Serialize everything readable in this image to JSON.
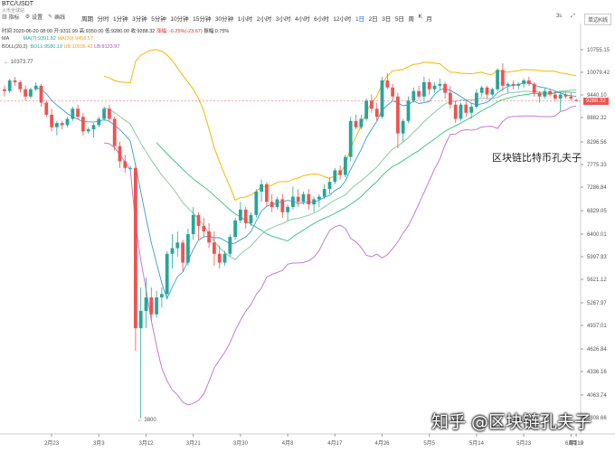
{
  "header": {
    "pair": "BTC/USDT",
    "subtitle": "火币全球站",
    "tools": [
      "指标",
      "设置",
      "画线"
    ],
    "intervals": [
      "周期",
      "分时",
      "1分钟",
      "3分钟",
      "5分钟",
      "10分钟",
      "15分钟",
      "30分钟",
      "1小时",
      "2小时",
      "3小时",
      "4小时",
      "6小时",
      "12小时",
      "1日",
      "2日",
      "3日",
      "5日",
      "周",
      "K",
      "月"
    ],
    "active_interval": "1日",
    "right": {
      "time": "3s",
      "mode": "单边K线"
    }
  },
  "ohlc": {
    "time": "时间 2020-06-20 08:00",
    "open": "开:9311.99",
    "high": "高:9350.00",
    "low": "低:9280.00",
    "close": "收:9288.32",
    "change": "涨幅: -0.25%(-23.67)",
    "amplitude": "振幅:0.75%"
  },
  "indicators": {
    "ma_label": "MA",
    "ma7": "MA(7):9391.82",
    "ma30": "MA(30):9458.57",
    "boll_label": "BOLL(20,2)",
    "boll_mid": "BOLL:9580.19",
    "boll_up": "UB:10036.42",
    "boll_lb": "LB:9123.97"
  },
  "price_tag": "9288.32",
  "high_marker": "10373.77",
  "low_marker": "3800",
  "watermark_main": "区块链比特币孔夫子",
  "watermark_bottom": "知乎 @区块链孔夫子",
  "colors": {
    "up": "#26a69a",
    "down": "#ef5350",
    "ma7": "#3a9ad9",
    "ma30": "#2ec27e",
    "boll_up": "#f5b700",
    "boll_mid": "#8bc9a8",
    "boll_lb": "#c879d6"
  },
  "chart_data": {
    "type": "candlestick",
    "y_ticks": [
      10755.15,
      10079.42,
      9440.1,
      8882.32,
      8296.56,
      7775.33,
      7286.84,
      6829.05,
      6400.01,
      5997.93,
      5621.12,
      5267.97,
      4937.01,
      4626.84,
      4336.16,
      4063.74,
      3808.66
    ],
    "x_ticks": [
      "2月23",
      "3月3",
      "3月12",
      "3月21",
      "3月30",
      "4月8",
      "4月17",
      "4月26",
      "5月5",
      "5月14",
      "5月23",
      "6月1",
      "6月10",
      "6月19"
    ],
    "ohlc": [
      [
        9600,
        9700,
        9400,
        9550
      ],
      [
        9550,
        9900,
        9500,
        9850
      ],
      [
        9850,
        9950,
        9700,
        9800
      ],
      [
        9800,
        9850,
        9500,
        9600
      ],
      [
        9600,
        9700,
        9300,
        9400
      ],
      [
        9400,
        9650,
        9350,
        9600
      ],
      [
        9600,
        9800,
        9550,
        9700
      ],
      [
        9700,
        9750,
        9150,
        9250
      ],
      [
        9250,
        9300,
        8900,
        8950
      ],
      [
        8950,
        9100,
        8550,
        8650
      ],
      [
        8650,
        8800,
        8450,
        8750
      ],
      [
        8750,
        8800,
        8600,
        8700
      ],
      [
        8700,
        8900,
        8650,
        8850
      ],
      [
        8850,
        9150,
        8800,
        9100
      ],
      [
        9100,
        9200,
        8850,
        8900
      ],
      [
        8900,
        9000,
        8450,
        8550
      ],
      [
        8550,
        8650,
        8500,
        8600
      ],
      [
        8600,
        8750,
        8400,
        8700
      ],
      [
        8700,
        8900,
        8650,
        8850
      ],
      [
        8850,
        9150,
        8800,
        9100
      ],
      [
        9100,
        9200,
        8800,
        8850
      ],
      [
        8850,
        8900,
        8100,
        8200
      ],
      [
        8200,
        8300,
        7700,
        7850
      ],
      [
        7850,
        8000,
        7600,
        7700
      ],
      [
        7700,
        7750,
        7650,
        7700
      ],
      [
        7700,
        7800,
        4600,
        4900
      ],
      [
        4900,
        5500,
        3800,
        5150
      ],
      [
        5150,
        5650,
        4900,
        5350
      ],
      [
        5350,
        5500,
        5000,
        5100
      ],
      [
        5100,
        5450,
        5050,
        5350
      ],
      [
        5350,
        5500,
        5200,
        5400
      ],
      [
        5400,
        6100,
        5350,
        6050
      ],
      [
        6050,
        6400,
        5800,
        6150
      ],
      [
        6150,
        6450,
        6000,
        6250
      ],
      [
        6250,
        6300,
        5750,
        5900
      ],
      [
        5900,
        6500,
        5850,
        6400
      ],
      [
        6400,
        6900,
        6300,
        6750
      ],
      [
        6750,
        6800,
        6300,
        6550
      ],
      [
        6550,
        6700,
        6350,
        6450
      ],
      [
        6450,
        6600,
        6150,
        6250
      ],
      [
        6250,
        6450,
        5850,
        6050
      ],
      [
        6050,
        6200,
        5800,
        5900
      ],
      [
        5900,
        6100,
        5850,
        6050
      ],
      [
        6050,
        6400,
        6000,
        6350
      ],
      [
        6350,
        6700,
        6300,
        6650
      ],
      [
        6650,
        7000,
        6600,
        6850
      ],
      [
        6850,
        6900,
        6500,
        6600
      ],
      [
        6600,
        6800,
        6550,
        6750
      ],
      [
        6750,
        7250,
        6700,
        7200
      ],
      [
        7200,
        7450,
        7000,
        7350
      ],
      [
        7350,
        7400,
        6900,
        7000
      ],
      [
        7000,
        7150,
        6800,
        6900
      ],
      [
        6900,
        7100,
        6850,
        7050
      ],
      [
        7050,
        7150,
        6700,
        6800
      ],
      [
        6800,
        6950,
        6650,
        6900
      ],
      [
        6900,
        7300,
        6850,
        7100
      ],
      [
        7100,
        7250,
        6900,
        7000
      ],
      [
        7000,
        7200,
        6950,
        7150
      ],
      [
        7150,
        7250,
        6850,
        6950
      ],
      [
        6950,
        7100,
        6800,
        7050
      ],
      [
        7050,
        7150,
        6900,
        7100
      ],
      [
        7100,
        7350,
        7050,
        7250
      ],
      [
        7250,
        7500,
        7150,
        7400
      ],
      [
        7400,
        7700,
        7350,
        7650
      ],
      [
        7650,
        7750,
        7450,
        7550
      ],
      [
        7550,
        8000,
        7500,
        7950
      ],
      [
        7950,
        8900,
        7850,
        8800
      ],
      [
        8800,
        8950,
        8600,
        8650
      ],
      [
        8650,
        8950,
        8600,
        8850
      ],
      [
        8850,
        9350,
        8800,
        9300
      ],
      [
        9300,
        9450,
        9000,
        9100
      ],
      [
        9100,
        9250,
        8800,
        8900
      ],
      [
        8900,
        9950,
        8850,
        9850
      ],
      [
        9850,
        10050,
        9600,
        9650
      ],
      [
        9650,
        9750,
        9300,
        9400
      ],
      [
        9400,
        9500,
        8150,
        8500
      ],
      [
        8500,
        8850,
        8300,
        8800
      ],
      [
        8800,
        9400,
        8750,
        9300
      ],
      [
        9300,
        9650,
        9250,
        9550
      ],
      [
        9550,
        9700,
        9350,
        9400
      ],
      [
        9400,
        9950,
        9300,
        9800
      ],
      [
        9800,
        9900,
        9450,
        9600
      ],
      [
        9600,
        9800,
        9500,
        9700
      ],
      [
        9700,
        9900,
        9600,
        9750
      ],
      [
        9750,
        9800,
        9350,
        9500
      ],
      [
        9500,
        9700,
        9100,
        9200
      ],
      [
        9200,
        9300,
        8750,
        8850
      ],
      [
        8850,
        9250,
        8800,
        9200
      ],
      [
        9200,
        9300,
        8900,
        9000
      ],
      [
        9000,
        9250,
        8850,
        9150
      ],
      [
        9150,
        9600,
        9100,
        9500
      ],
      [
        9500,
        9700,
        9400,
        9650
      ],
      [
        9650,
        9700,
        9350,
        9450
      ],
      [
        9450,
        9650,
        9400,
        9600
      ],
      [
        9600,
        10200,
        9550,
        10150
      ],
      [
        10150,
        10350,
        9550,
        9700
      ],
      [
        9700,
        9800,
        9500,
        9750
      ],
      [
        9750,
        9850,
        9600,
        9700
      ],
      [
        9700,
        9800,
        9600,
        9750
      ],
      [
        9750,
        9900,
        9650,
        9850
      ],
      [
        9850,
        9950,
        9700,
        9750
      ],
      [
        9750,
        9800,
        9400,
        9500
      ],
      [
        9500,
        9550,
        9250,
        9400
      ],
      [
        9400,
        9650,
        9350,
        9550
      ],
      [
        9550,
        9600,
        9400,
        9450
      ],
      [
        9450,
        9550,
        9300,
        9350
      ],
      [
        9350,
        9500,
        9050,
        9450
      ],
      [
        9450,
        9500,
        9350,
        9400
      ],
      [
        9400,
        9500,
        9300,
        9350
      ],
      [
        9311.99,
        9350,
        9280,
        9288.32
      ]
    ]
  }
}
